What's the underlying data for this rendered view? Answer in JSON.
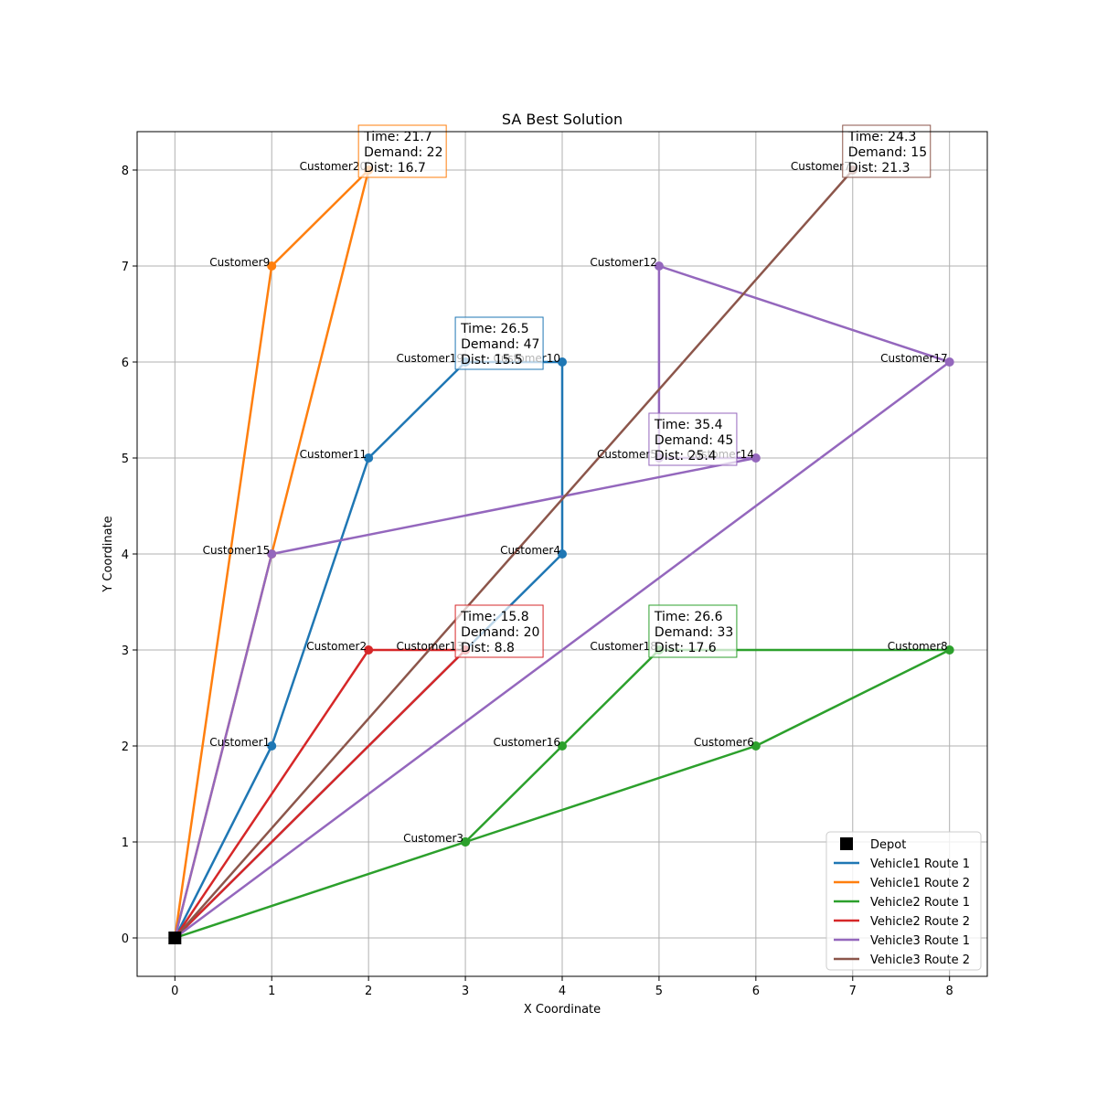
{
  "chart_data": {
    "type": "line",
    "title": "SA Best Solution",
    "xlabel": "X Coordinate",
    "ylabel": "Y Coordinate",
    "xlim": [
      -0.39,
      8.39
    ],
    "ylim": [
      -0.4,
      8.4
    ],
    "x_ticks": [
      "0",
      "1",
      "2",
      "3",
      "4",
      "5",
      "6",
      "7",
      "8"
    ],
    "y_ticks": [
      "0",
      "1",
      "2",
      "3",
      "4",
      "5",
      "6",
      "7",
      "8"
    ],
    "grid": true,
    "legend_position": "bottom-right",
    "depot": {
      "label": "Depot",
      "x": 0,
      "y": 0,
      "color": "#000000"
    },
    "customers": [
      {
        "name": "Customer1",
        "x": 1,
        "y": 2
      },
      {
        "name": "Customer2",
        "x": 2,
        "y": 3
      },
      {
        "name": "Customer3",
        "x": 3,
        "y": 1
      },
      {
        "name": "Customer4",
        "x": 4,
        "y": 4
      },
      {
        "name": "Customer5",
        "x": 5,
        "y": 5
      },
      {
        "name": "Customer6",
        "x": 6,
        "y": 2
      },
      {
        "name": "Customer7",
        "x": 7,
        "y": 8
      },
      {
        "name": "Customer8",
        "x": 8,
        "y": 3
      },
      {
        "name": "Customer9",
        "x": 1,
        "y": 7
      },
      {
        "name": "Customer10",
        "x": 4,
        "y": 6
      },
      {
        "name": "Customer11",
        "x": 2,
        "y": 5
      },
      {
        "name": "Customer12",
        "x": 5,
        "y": 7
      },
      {
        "name": "Customer13",
        "x": 3,
        "y": 3
      },
      {
        "name": "Customer14",
        "x": 6,
        "y": 5
      },
      {
        "name": "Customer15",
        "x": 1,
        "y": 4
      },
      {
        "name": "Customer16",
        "x": 4,
        "y": 2
      },
      {
        "name": "Customer17",
        "x": 8,
        "y": 6
      },
      {
        "name": "Customer18",
        "x": 5,
        "y": 3
      },
      {
        "name": "Customer19",
        "x": 3,
        "y": 6
      },
      {
        "name": "Customer20",
        "x": 2,
        "y": 8
      }
    ],
    "series": [
      {
        "name": "Vehicle1 Route 1",
        "color": "#1f77b4",
        "route": [
          [
            0,
            0
          ],
          [
            1,
            2
          ],
          [
            2,
            5
          ],
          [
            3,
            6
          ],
          [
            4,
            6
          ],
          [
            4,
            4
          ],
          [
            3,
            3
          ],
          [
            0,
            0
          ]
        ],
        "box": {
          "x": 3,
          "y": 6,
          "lines": [
            "Time: 26.5",
            "Demand: 47",
            "Dist: 15.5"
          ]
        }
      },
      {
        "name": "Vehicle1 Route 2",
        "color": "#ff7f0e",
        "route": [
          [
            0,
            0
          ],
          [
            1,
            7
          ],
          [
            2,
            8
          ],
          [
            1,
            4
          ],
          [
            0,
            0
          ]
        ],
        "box": {
          "x": 2,
          "y": 8,
          "lines": [
            "Time: 21.7",
            "Demand: 22",
            "Dist: 16.7"
          ]
        }
      },
      {
        "name": "Vehicle2 Route 1",
        "color": "#2ca02c",
        "route": [
          [
            0,
            0
          ],
          [
            3,
            1
          ],
          [
            4,
            2
          ],
          [
            5,
            3
          ],
          [
            8,
            3
          ],
          [
            6,
            2
          ],
          [
            3,
            1
          ],
          [
            0,
            0
          ]
        ],
        "box": {
          "x": 5,
          "y": 3,
          "lines": [
            "Time: 26.6",
            "Demand: 33",
            "Dist: 17.6"
          ]
        }
      },
      {
        "name": "Vehicle2 Route 2",
        "color": "#d62728",
        "route": [
          [
            0,
            0
          ],
          [
            2,
            3
          ],
          [
            3,
            3
          ],
          [
            0,
            0
          ]
        ],
        "box": {
          "x": 3,
          "y": 3,
          "lines": [
            "Time: 15.8",
            "Demand: 20",
            "Dist: 8.8"
          ]
        }
      },
      {
        "name": "Vehicle3 Route 1",
        "color": "#9467bd",
        "route": [
          [
            0,
            0
          ],
          [
            1,
            4
          ],
          [
            6,
            5
          ],
          [
            5,
            5
          ],
          [
            5,
            7
          ],
          [
            8,
            6
          ],
          [
            0,
            0
          ]
        ],
        "box": {
          "x": 5,
          "y": 5,
          "lines": [
            "Time: 35.4",
            "Demand: 45",
            "Dist: 25.4"
          ]
        }
      },
      {
        "name": "Vehicle3 Route 2",
        "color": "#8c564b",
        "route": [
          [
            0,
            0
          ],
          [
            7,
            8
          ],
          [
            0,
            0
          ]
        ],
        "box": {
          "x": 7,
          "y": 8,
          "lines": [
            "Time: 24.3",
            "Demand: 15",
            "Dist: 21.3"
          ]
        }
      }
    ]
  }
}
